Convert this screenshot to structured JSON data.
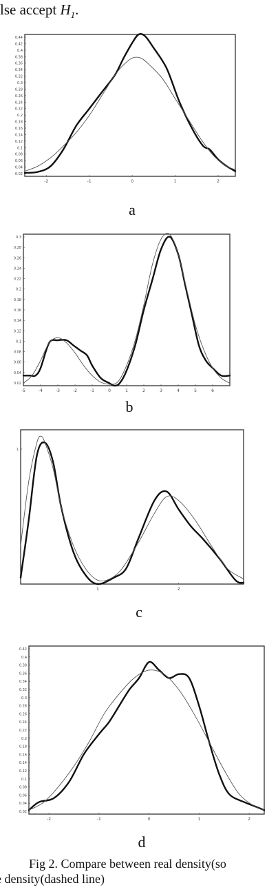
{
  "top_text": {
    "prefix": "lse  accept",
    "variable": "H",
    "subscript": "1",
    "suffix": "."
  },
  "caption": {
    "line1": "Fig 2.  Compare between real density(so",
    "line2": "e density(dashed line)"
  },
  "chart_data": [
    {
      "type": "line",
      "label": "a",
      "xlim": [
        -2.5,
        2.4
      ],
      "ylim": [
        0.02,
        0.44
      ],
      "yticks": [
        "0.44",
        "0.42",
        "0.4",
        "0.38",
        "0.36",
        "0.34",
        "0.32",
        "0.3",
        "0.28",
        "0.26",
        "0.24",
        "0.22",
        "0.2",
        "0.18",
        "0.16",
        "0.14",
        "0.12",
        "0.1",
        "0.08",
        "0.06",
        "0.04",
        "0.02"
      ],
      "xticks": [
        {
          "v": -2,
          "t": "-2"
        },
        {
          "v": -1,
          "t": "-1"
        },
        {
          "v": 0,
          "t": "0"
        },
        {
          "v": 1,
          "t": "1"
        },
        {
          "v": 2,
          "t": "2"
        }
      ],
      "series": [
        {
          "x": [
            -2.5,
            -2.2,
            -1.9,
            -1.6,
            -1.3,
            -1,
            -0.7,
            -0.4,
            -0.2,
            0,
            0.15,
            0.3,
            0.5,
            0.8,
            1.1,
            1.4,
            1.65,
            1.8,
            2,
            2.2,
            2.4
          ],
          "y": [
            0.03,
            0.033,
            0.05,
            0.1,
            0.17,
            0.22,
            0.27,
            0.32,
            0.37,
            0.415,
            0.44,
            0.435,
            0.4,
            0.34,
            0.24,
            0.16,
            0.11,
            0.1,
            0.07,
            0.05,
            0.035
          ]
        },
        {
          "x": [
            -2.5,
            -2.2,
            -1.9,
            -1.6,
            -1.3,
            -1,
            -0.7,
            -0.4,
            -0.2,
            0,
            0.2,
            0.4,
            0.7,
            1,
            1.3,
            1.6,
            1.9,
            2.2,
            2.4
          ],
          "y": [
            0.035,
            0.05,
            0.075,
            0.11,
            0.15,
            0.2,
            0.26,
            0.32,
            0.35,
            0.37,
            0.37,
            0.35,
            0.31,
            0.25,
            0.19,
            0.13,
            0.08,
            0.05,
            0.04
          ]
        }
      ]
    },
    {
      "type": "line",
      "label": "b",
      "xlim": [
        -5,
        7
      ],
      "ylim": [
        0,
        0.3
      ],
      "yticks": [
        "0.3",
        "0.28",
        "0.26",
        "0.24",
        "0.22",
        "0.2",
        "0.18",
        "0.16",
        "0.14",
        "0.12",
        "0.1",
        "0.08",
        "0.06",
        "0.04",
        "0.02"
      ],
      "xticks": [
        {
          "v": -5,
          "t": "-5"
        },
        {
          "v": -4,
          "t": "-4"
        },
        {
          "v": -3,
          "t": "-3"
        },
        {
          "v": -2,
          "t": "-2"
        },
        {
          "v": -1,
          "t": "-1"
        },
        {
          "v": 0,
          "t": "0"
        },
        {
          "v": 1,
          "t": "1"
        },
        {
          "v": 2,
          "t": "2"
        },
        {
          "v": 3,
          "t": "3"
        },
        {
          "v": 4,
          "t": "4"
        },
        {
          "v": 5,
          "t": "5"
        },
        {
          "v": 6,
          "t": "6"
        }
      ],
      "series": [
        {
          "x": [
            -5,
            -4.6,
            -4.3,
            -4,
            -3.5,
            -3,
            -2.5,
            -2.1,
            -1.7,
            -1.3,
            -1,
            -0.5,
            0,
            0.3,
            0.6,
            1,
            1.5,
            2,
            2.5,
            3,
            3.5,
            4,
            4.4,
            4.8,
            5.2,
            5.6,
            6,
            6.5,
            7
          ],
          "y": [
            0.02,
            0.02,
            0.02,
            0.035,
            0.085,
            0.09,
            0.09,
            0.08,
            0.07,
            0.06,
            0.04,
            0.015,
            0.005,
            0,
            0.005,
            0.03,
            0.08,
            0.15,
            0.21,
            0.27,
            0.295,
            0.26,
            0.2,
            0.14,
            0.08,
            0.05,
            0.035,
            0.02,
            0.02
          ]
        },
        {
          "x": [
            -5,
            -4.5,
            -4,
            -3.5,
            -3,
            -2.5,
            -2,
            -1.5,
            -1,
            -0.5,
            0,
            0.5,
            1,
            1.5,
            2,
            2.5,
            3,
            3.5,
            4,
            4.5,
            5,
            5.5,
            6,
            6.5,
            7
          ],
          "y": [
            0.005,
            0.02,
            0.05,
            0.085,
            0.095,
            0.085,
            0.065,
            0.04,
            0.02,
            0.007,
            0.003,
            0.008,
            0.04,
            0.09,
            0.16,
            0.24,
            0.29,
            0.3,
            0.26,
            0.19,
            0.12,
            0.07,
            0.035,
            0.015,
            0.005
          ]
        }
      ]
    },
    {
      "type": "line",
      "label": "c",
      "xlim": [
        0.05,
        2.8
      ],
      "ylim": [
        0,
        1.2
      ],
      "yticks": [
        {
          "v": 1.05,
          "t": "1"
        }
      ],
      "xticks": [
        {
          "v": 1,
          "t": "1"
        },
        {
          "v": 2,
          "t": "2"
        }
      ],
      "series": [
        {
          "x": [
            0.05,
            0.15,
            0.25,
            0.35,
            0.45,
            0.55,
            0.7,
            0.85,
            1,
            1.2,
            1.35,
            1.5,
            1.7,
            1.85,
            2,
            2.15,
            2.3,
            2.5,
            2.7,
            2.8
          ],
          "y": [
            0.05,
            0.5,
            1,
            1.1,
            0.95,
            0.6,
            0.25,
            0.07,
            0,
            0.05,
            0.12,
            0.35,
            0.65,
            0.72,
            0.58,
            0.45,
            0.35,
            0.2,
            0.03,
            0.01
          ]
        },
        {
          "x": [
            0.05,
            0.15,
            0.25,
            0.3,
            0.35,
            0.45,
            0.55,
            0.7,
            0.85,
            1,
            1.15,
            1.3,
            1.5,
            1.7,
            1.85,
            2,
            2.2,
            2.4,
            2.6,
            2.8
          ],
          "y": [
            0.3,
            0.8,
            1.1,
            1.15,
            1.1,
            0.9,
            0.6,
            0.3,
            0.12,
            0.03,
            0.04,
            0.12,
            0.32,
            0.55,
            0.68,
            0.65,
            0.5,
            0.3,
            0.12,
            0.04
          ]
        }
      ]
    },
    {
      "type": "line",
      "label": "d",
      "xlim": [
        -2.4,
        2.3
      ],
      "ylim": [
        0.02,
        0.44
      ],
      "yticks": [
        "0.42",
        "0.4",
        "0.38",
        "0.36",
        "0.34",
        "0.32",
        "0.3",
        "0.28",
        "0.26",
        "0.24",
        "0.22",
        "0.2",
        "0.18",
        "0.16",
        "0.14",
        "0.12",
        "0.1",
        "0.08",
        "0.06",
        "0.04",
        "0.02"
      ],
      "xticks": [
        {
          "v": -2,
          "t": "-2"
        },
        {
          "v": -1,
          "t": "-1"
        },
        {
          "v": 0,
          "t": "0"
        },
        {
          "v": 1,
          "t": "1"
        },
        {
          "v": 2,
          "t": "2"
        }
      ],
      "series": [
        {
          "x": [
            -2.4,
            -2.2,
            -1.9,
            -1.6,
            -1.3,
            -1,
            -0.8,
            -0.6,
            -0.4,
            -0.2,
            0,
            0.2,
            0.4,
            0.6,
            0.8,
            1,
            1.2,
            1.4,
            1.6,
            1.9,
            2.1,
            2.3
          ],
          "y": [
            0.03,
            0.05,
            0.06,
            0.1,
            0.17,
            0.22,
            0.25,
            0.29,
            0.33,
            0.36,
            0.4,
            0.38,
            0.36,
            0.37,
            0.36,
            0.29,
            0.2,
            0.12,
            0.07,
            0.05,
            0.04,
            0.03
          ]
        },
        {
          "x": [
            -2.4,
            -2.1,
            -1.8,
            -1.5,
            -1.2,
            -0.9,
            -0.6,
            -0.3,
            0,
            0.3,
            0.6,
            0.9,
            1.2,
            1.5,
            1.8,
            2.1,
            2.3
          ],
          "y": [
            0.03,
            0.05,
            0.09,
            0.14,
            0.2,
            0.27,
            0.32,
            0.36,
            0.38,
            0.37,
            0.33,
            0.27,
            0.2,
            0.13,
            0.07,
            0.04,
            0.03
          ]
        }
      ]
    }
  ]
}
